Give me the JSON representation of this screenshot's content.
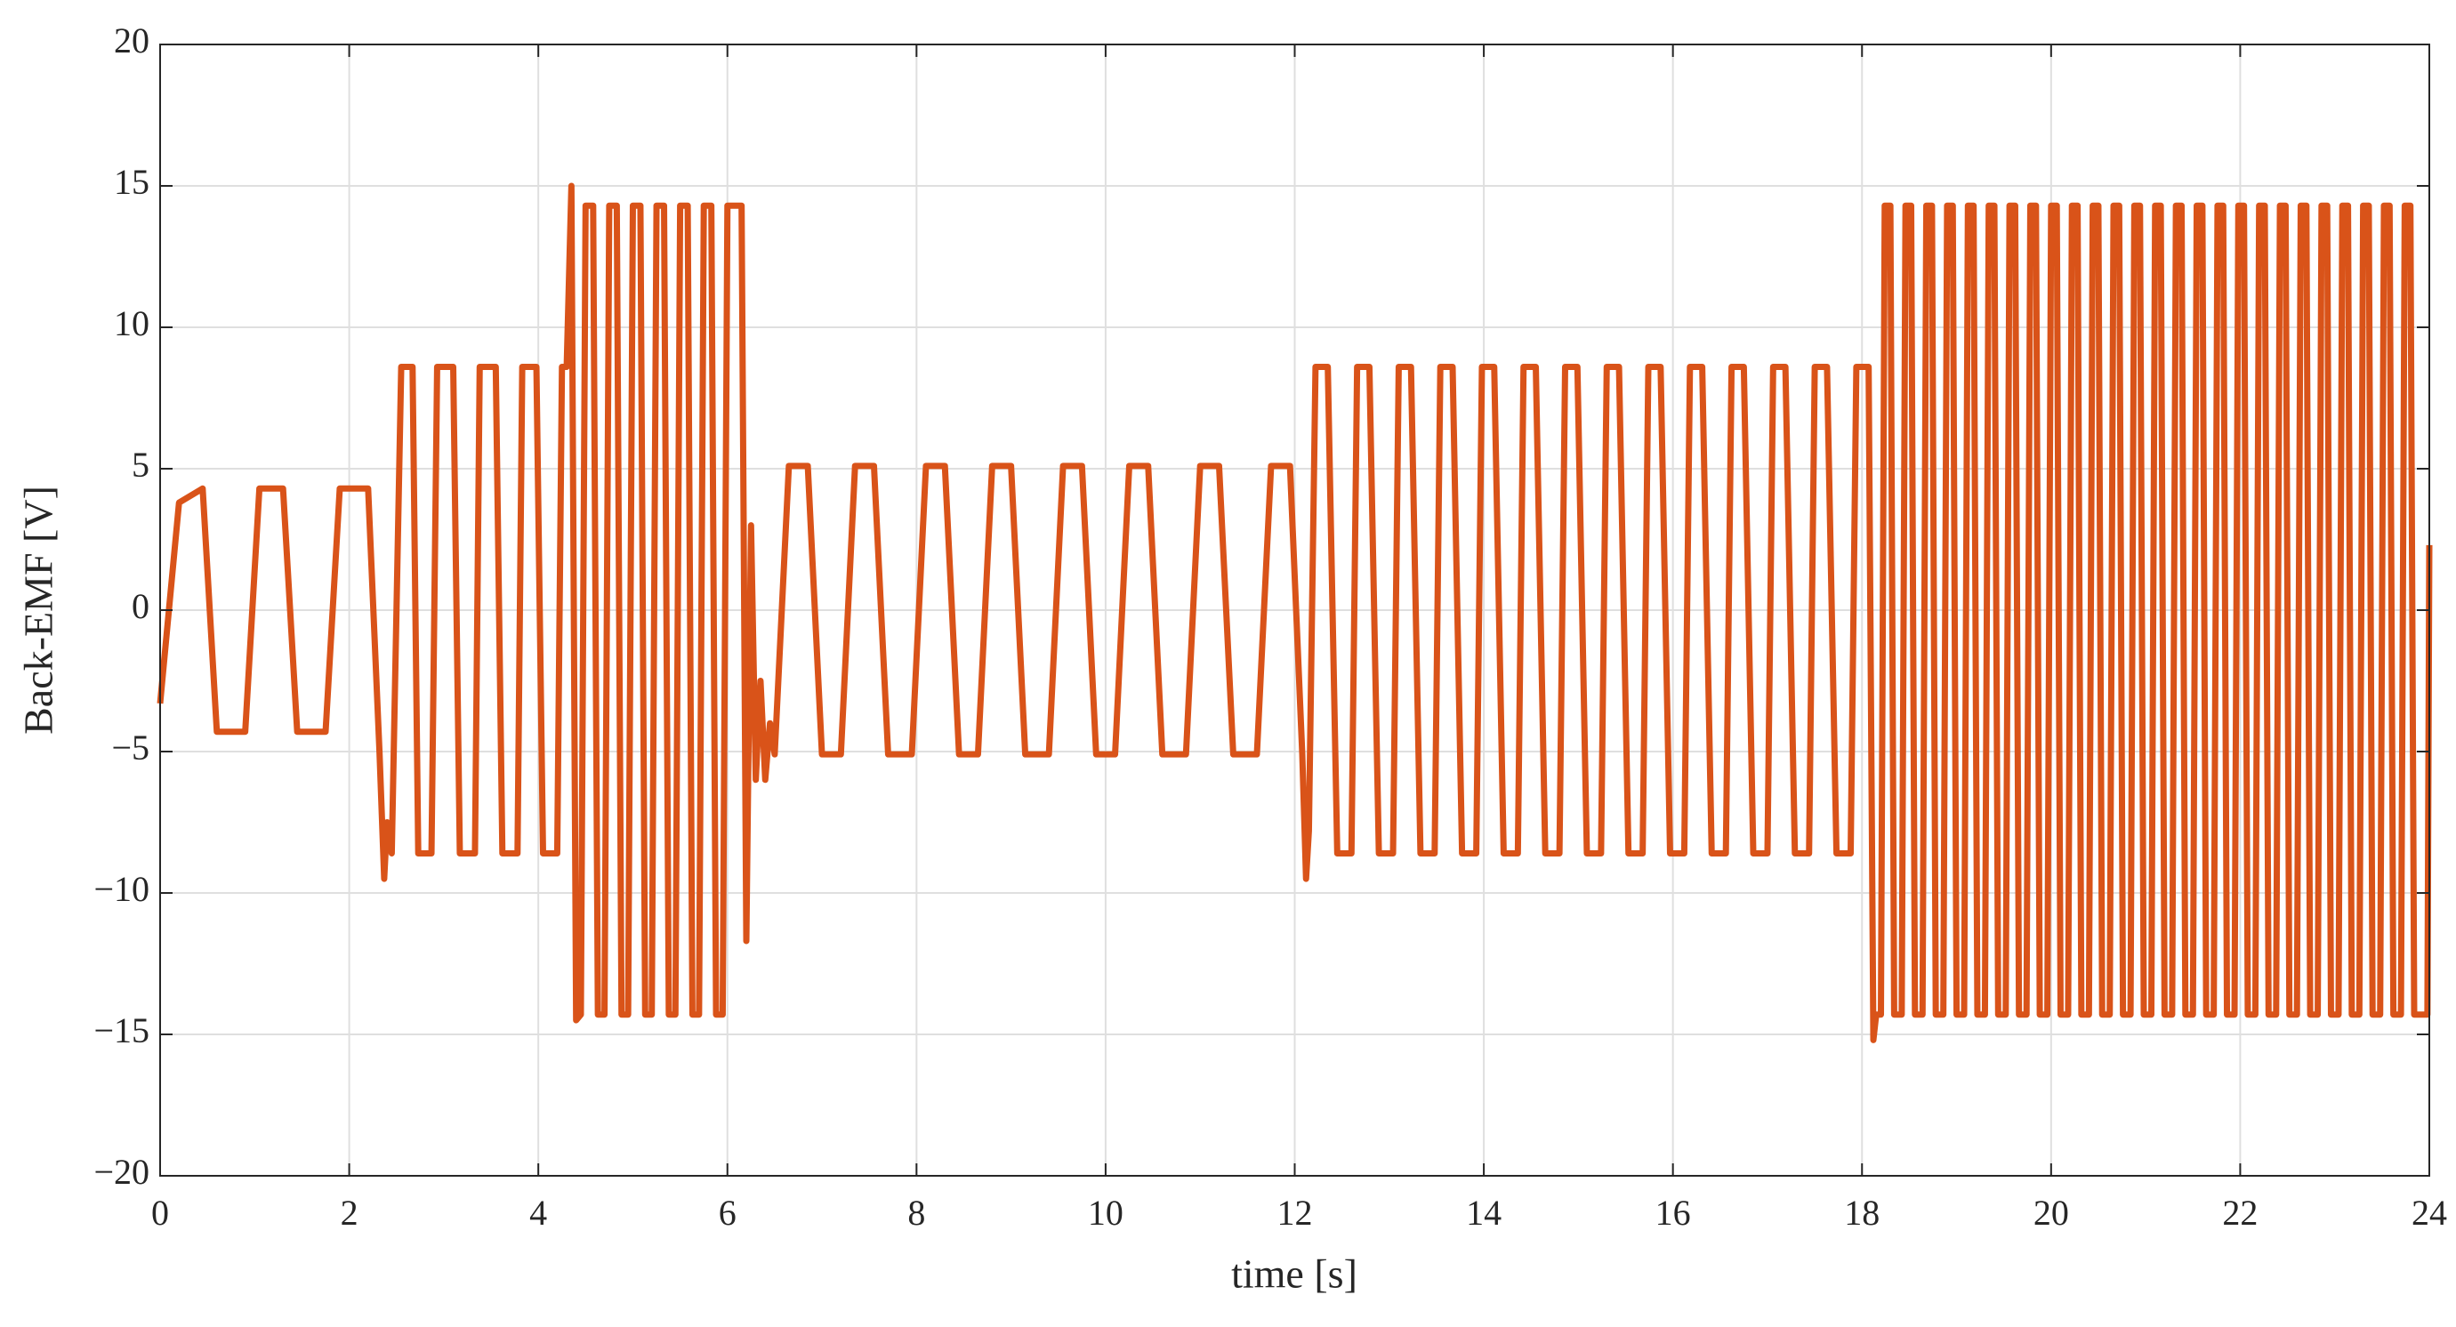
{
  "chart_data": {
    "type": "line",
    "xlabel": "time [s]",
    "ylabel": "Back-EMF [V]",
    "xlim": [
      0,
      24
    ],
    "xticks": [
      0,
      2,
      4,
      6,
      8,
      10,
      12,
      14,
      16,
      18,
      20,
      22,
      24
    ],
    "ylim": [
      -20,
      20
    ],
    "yticks": [
      {
        "value": -20,
        "label": "−20"
      },
      {
        "value": -15,
        "label": "−15"
      },
      {
        "value": -10,
        "label": "−10"
      },
      {
        "value": -5,
        "label": "−5"
      },
      0,
      5,
      10,
      15,
      20
    ],
    "grid": true,
    "x": [
      0,
      0.2,
      0.45,
      0.6,
      0.9,
      1.05,
      1.3,
      1.45,
      1.75,
      1.9,
      2.2,
      2.32,
      2.37,
      2.4,
      2.45,
      2.55,
      2.67,
      2.73,
      2.87,
      2.93,
      3.1,
      3.17,
      3.33,
      3.38,
      3.55,
      3.62,
      3.78,
      3.83,
      3.98,
      4.05,
      4.2,
      4.25,
      4.3,
      4.35,
      4.4,
      4.45,
      4.5,
      4.58,
      4.63,
      4.7,
      4.75,
      4.83,
      4.88,
      4.95,
      5,
      5.08,
      5.13,
      5.2,
      5.25,
      5.33,
      5.38,
      5.45,
      5.5,
      5.58,
      5.63,
      5.7,
      5.75,
      5.83,
      5.88,
      5.95,
      6,
      6.15,
      6.2,
      6.25,
      6.3,
      6.35,
      6.4,
      6.45,
      6.5,
      6.65,
      6.85,
      7,
      7.2,
      7.35,
      7.55,
      7.7,
      7.95,
      8.1,
      8.3,
      8.45,
      8.65,
      8.8,
      9,
      9.15,
      9.4,
      9.55,
      9.75,
      9.9,
      10.1,
      10.25,
      10.45,
      10.6,
      10.85,
      11,
      11.2,
      11.35,
      11.6,
      11.75,
      11.95,
      12.08,
      12.12,
      12.15,
      12.22,
      12.35,
      12.45,
      12.6,
      12.66,
      12.79,
      12.89,
      13.04,
      13.1,
      13.23,
      13.33,
      13.48,
      13.54,
      13.67,
      13.77,
      13.92,
      13.98,
      14.11,
      14.21,
      14.36,
      14.42,
      14.55,
      14.65,
      14.8,
      14.86,
      14.99,
      15.09,
      15.24,
      15.3,
      15.43,
      15.53,
      15.68,
      15.74,
      15.87,
      15.97,
      16.12,
      16.18,
      16.31,
      16.41,
      16.56,
      16.62,
      16.75,
      16.85,
      17,
      17.06,
      17.19,
      17.29,
      17.44,
      17.5,
      17.63,
      17.73,
      17.88,
      17.94,
      18.07,
      18.12,
      18.15,
      18.2,
      18.24,
      18.3,
      18.34,
      18.42,
      18.46,
      18.52,
      18.56,
      18.64,
      18.68,
      18.74,
      18.78,
      18.86,
      18.9,
      18.96,
      19,
      19.08,
      19.12,
      19.18,
      19.22,
      19.3,
      19.34,
      19.4,
      19.44,
      19.52,
      19.56,
      19.62,
      19.66,
      19.74,
      19.78,
      19.84,
      19.88,
      19.96,
      20,
      20.06,
      20.1,
      20.18,
      20.22,
      20.28,
      20.32,
      20.4,
      20.44,
      20.5,
      20.54,
      20.62,
      20.66,
      20.72,
      20.76,
      20.84,
      20.88,
      20.94,
      20.98,
      21.06,
      21.1,
      21.16,
      21.2,
      21.28,
      21.32,
      21.38,
      21.42,
      21.5,
      21.54,
      21.6,
      21.64,
      21.72,
      21.76,
      21.82,
      21.86,
      21.94,
      21.98,
      22.04,
      22.08,
      22.16,
      22.2,
      22.26,
      22.3,
      22.38,
      22.42,
      22.48,
      22.52,
      22.6,
      22.64,
      22.7,
      22.74,
      22.82,
      22.86,
      22.92,
      22.96,
      23.04,
      23.08,
      23.14,
      23.18,
      23.26,
      23.3,
      23.36,
      23.4,
      23.48,
      23.52,
      23.58,
      23.62,
      23.7,
      23.74,
      23.8,
      23.84,
      23.98,
      24
    ],
    "series": [
      {
        "color": "#D95319",
        "values": [
          -3.3,
          3.8,
          4.3,
          -4.3,
          -4.3,
          4.3,
          4.3,
          -4.3,
          -4.3,
          4.3,
          4.3,
          -5,
          -9.5,
          -7.5,
          -8.6,
          8.6,
          8.6,
          -8.6,
          -8.6,
          8.6,
          8.6,
          -8.6,
          -8.6,
          8.6,
          8.6,
          -8.6,
          -8.6,
          8.6,
          8.6,
          -8.6,
          -8.6,
          8.6,
          8.6,
          15,
          -14.5,
          -14.3,
          14.3,
          14.3,
          -14.3,
          -14.3,
          14.3,
          14.3,
          -14.3,
          -14.3,
          14.3,
          14.3,
          -14.3,
          -14.3,
          14.3,
          14.3,
          -14.3,
          -14.3,
          14.3,
          14.3,
          -14.3,
          -14.3,
          14.3,
          14.3,
          -14.3,
          -14.3,
          14.3,
          14.3,
          -11.7,
          3,
          -6,
          -2.5,
          -6,
          -4,
          -5.1,
          5.1,
          5.1,
          -5.1,
          -5.1,
          5.1,
          5.1,
          -5.1,
          -5.1,
          5.1,
          5.1,
          -5.1,
          -5.1,
          5.1,
          5.1,
          -5.1,
          -5.1,
          5.1,
          5.1,
          -5.1,
          -5.1,
          5.1,
          5.1,
          -5.1,
          -5.1,
          5.1,
          5.1,
          -5.1,
          -5.1,
          5.1,
          5.1,
          -5.1,
          -9.5,
          -7.8,
          8.6,
          8.6,
          -8.6,
          -8.6,
          8.6,
          8.6,
          -8.6,
          -8.6,
          8.6,
          8.6,
          -8.6,
          -8.6,
          8.6,
          8.6,
          -8.6,
          -8.6,
          8.6,
          8.6,
          -8.6,
          -8.6,
          8.6,
          8.6,
          -8.6,
          -8.6,
          8.6,
          8.6,
          -8.6,
          -8.6,
          8.6,
          8.6,
          -8.6,
          -8.6,
          8.6,
          8.6,
          -8.6,
          -8.6,
          8.6,
          8.6,
          -8.6,
          -8.6,
          8.6,
          8.6,
          -8.6,
          -8.6,
          8.6,
          8.6,
          -8.6,
          -8.6,
          8.6,
          8.6,
          -8.6,
          -8.6,
          8.6,
          8.6,
          -15.2,
          -14.3,
          -14.3,
          14.3,
          14.3,
          -14.3,
          -14.3,
          14.3,
          14.3,
          -14.3,
          -14.3,
          14.3,
          14.3,
          -14.3,
          -14.3,
          14.3,
          14.3,
          -14.3,
          -14.3,
          14.3,
          14.3,
          -14.3,
          -14.3,
          14.3,
          14.3,
          -14.3,
          -14.3,
          14.3,
          14.3,
          -14.3,
          -14.3,
          14.3,
          14.3,
          -14.3,
          -14.3,
          14.3,
          14.3,
          -14.3,
          -14.3,
          14.3,
          14.3,
          -14.3,
          -14.3,
          14.3,
          14.3,
          -14.3,
          -14.3,
          14.3,
          14.3,
          -14.3,
          -14.3,
          14.3,
          14.3,
          -14.3,
          -14.3,
          14.3,
          14.3,
          -14.3,
          -14.3,
          14.3,
          14.3,
          -14.3,
          -14.3,
          14.3,
          14.3,
          -14.3,
          -14.3,
          14.3,
          14.3,
          -14.3,
          -14.3,
          14.3,
          14.3,
          -14.3,
          -14.3,
          14.3,
          14.3,
          -14.3,
          -14.3,
          14.3,
          14.3,
          -14.3,
          -14.3,
          14.3,
          14.3,
          -14.3,
          -14.3,
          14.3,
          14.3,
          -14.3,
          -14.3,
          14.3,
          14.3,
          -14.3,
          -14.3,
          14.3,
          14.3,
          -14.3,
          -14.3,
          14.3,
          14.3,
          -14.3,
          -14.3,
          14.3,
          14.3,
          -14.3,
          -14.3,
          2.3
        ]
      }
    ]
  }
}
